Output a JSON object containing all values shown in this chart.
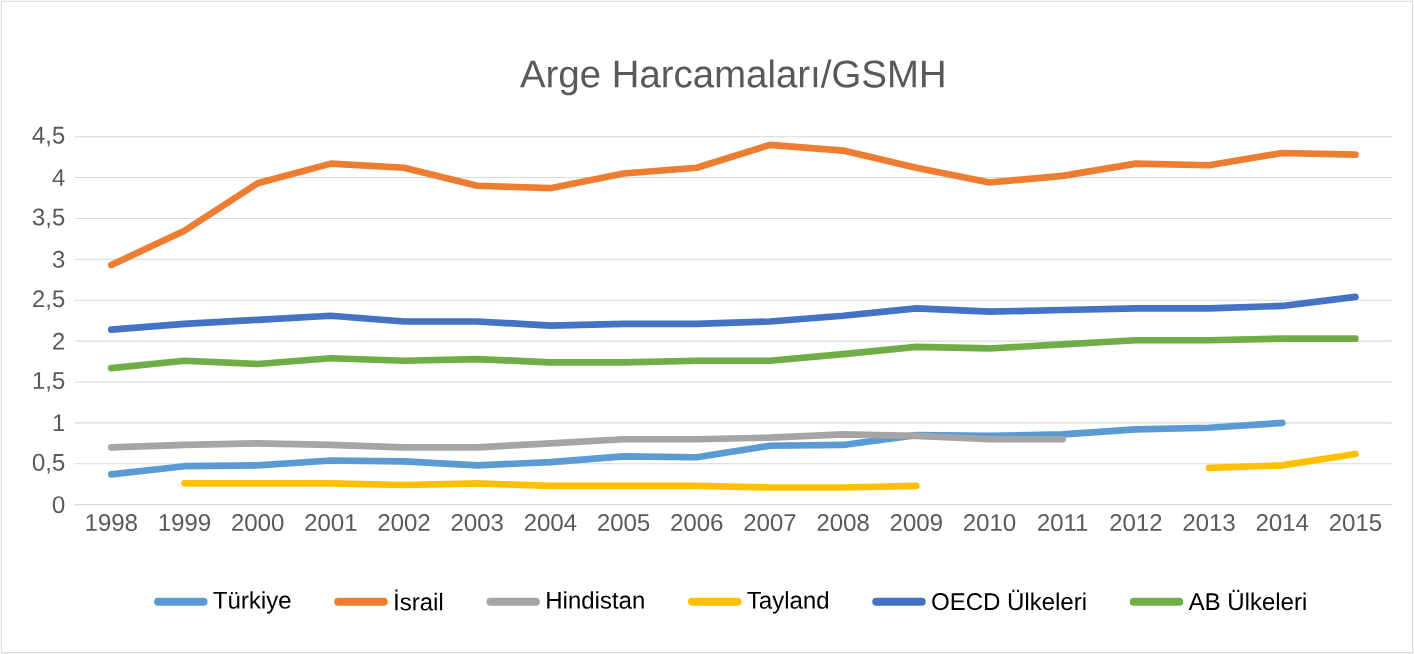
{
  "chart_data": {
    "type": "line",
    "title": "Arge Harcamaları/GSMH",
    "categories": [
      "1998",
      "1999",
      "2000",
      "2001",
      "2002",
      "2003",
      "2004",
      "2005",
      "2006",
      "2007",
      "2008",
      "2009",
      "2010",
      "2011",
      "2012",
      "2013",
      "2014",
      "2015"
    ],
    "series": [
      {
        "name": "Türkiye",
        "color": "#5b9bd5",
        "values": [
          0.37,
          0.47,
          0.48,
          0.54,
          0.53,
          0.48,
          0.52,
          0.59,
          0.58,
          0.72,
          0.73,
          0.85,
          0.84,
          0.86,
          0.92,
          0.94,
          1.0,
          null
        ]
      },
      {
        "name": "İsrail",
        "color": "#ed7d31",
        "values": [
          2.93,
          3.35,
          3.93,
          4.17,
          4.12,
          3.9,
          3.87,
          4.05,
          4.12,
          4.4,
          4.33,
          4.12,
          3.94,
          4.02,
          4.17,
          4.15,
          4.3,
          4.28
        ]
      },
      {
        "name": "Hindistan",
        "color": "#a5a5a5",
        "values": [
          0.7,
          0.73,
          0.75,
          0.73,
          0.7,
          0.7,
          0.75,
          0.8,
          0.8,
          0.82,
          0.86,
          0.84,
          0.8,
          0.8,
          null,
          null,
          null,
          null
        ]
      },
      {
        "name": "Tayland",
        "color": "#ffc000",
        "values": [
          null,
          0.26,
          0.26,
          0.26,
          0.24,
          0.26,
          0.23,
          0.23,
          0.23,
          0.21,
          0.21,
          0.23,
          null,
          null,
          null,
          0.45,
          0.48,
          0.62
        ]
      },
      {
        "name": "OECD Ülkeleri",
        "color": "#4472c4",
        "values": [
          2.14,
          2.21,
          2.26,
          2.31,
          2.24,
          2.24,
          2.19,
          2.21,
          2.21,
          2.24,
          2.31,
          2.4,
          2.36,
          2.38,
          2.4,
          2.4,
          2.43,
          2.54
        ]
      },
      {
        "name": "AB Ülkeleri",
        "color": "#70ad47",
        "values": [
          1.67,
          1.76,
          1.72,
          1.79,
          1.76,
          1.78,
          1.74,
          1.74,
          1.76,
          1.76,
          1.84,
          1.93,
          1.91,
          1.96,
          2.01,
          2.01,
          2.03,
          2.03
        ]
      }
    ],
    "ylim": [
      0,
      4.5
    ],
    "yticks": [
      0,
      {
        "value": 0.5,
        "label": "0,5"
      },
      1,
      {
        "value": 1.5,
        "label": "1,5"
      },
      2,
      {
        "value": 2.5,
        "label": "2,5"
      },
      3,
      {
        "value": 3.5,
        "label": "3,5"
      },
      4,
      {
        "value": 4.5,
        "label": "4,5"
      }
    ],
    "grid": "y",
    "legend": "bottom",
    "marker": "none",
    "line_style": "solid"
  }
}
